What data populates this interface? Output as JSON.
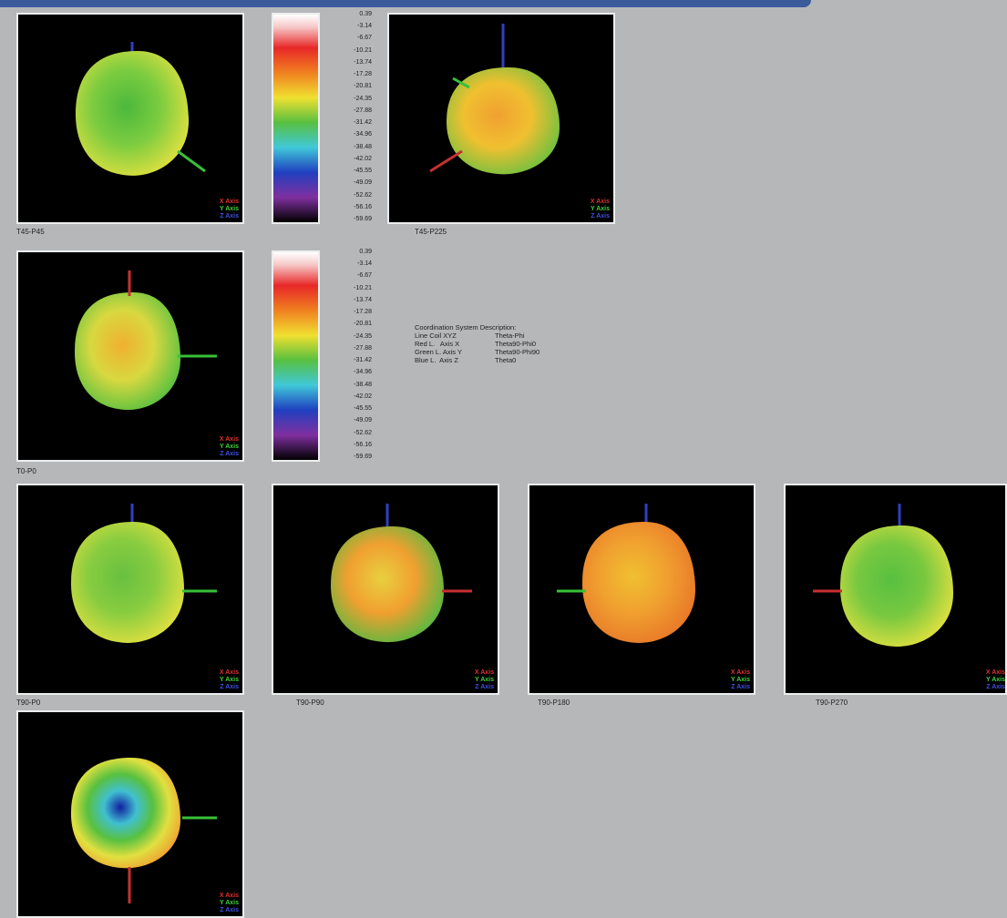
{
  "panels": [
    "T45-P45",
    "T45-P225",
    "T0-P0",
    "T90-P0",
    "T90-P90",
    "T90-P180",
    "T90-P270"
  ],
  "axis_legend": [
    "X Axis",
    "Y Axis",
    "Z Axis"
  ],
  "color_scale": [
    "0.39",
    "-3.14",
    "-6.67",
    "-10.21",
    "-13.74",
    "-17.28",
    "-20.81",
    "-24.35",
    "-27.88",
    "-31.42",
    "-34.96",
    "-38.48",
    "-42.02",
    "-45.55",
    "-49.09",
    "-52.62",
    "-56.16",
    "-59.69"
  ],
  "description": {
    "title": "Coordination System Description:",
    "rows": [
      [
        "Line Coil XYZ",
        "Theta-Phi"
      ],
      [
        "Red L.   Axis X",
        "Theta90-Phi0"
      ],
      [
        "Green L. Axis Y",
        "Theta90-Phi90"
      ],
      [
        "Blue L.  Axis Z",
        "Theta0"
      ]
    ]
  }
}
